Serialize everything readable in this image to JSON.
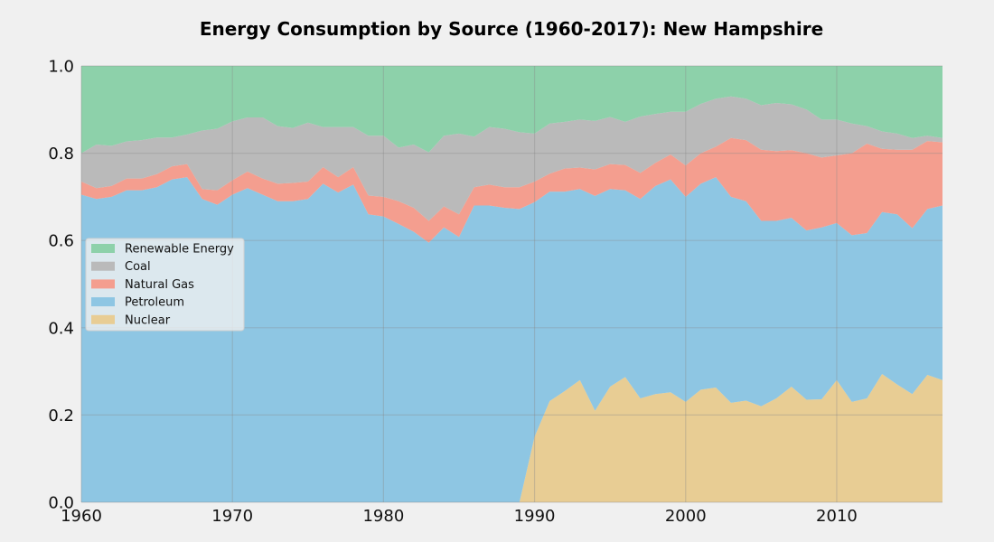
{
  "chart_data": {
    "type": "area",
    "stacked": true,
    "normalized": true,
    "title": "Energy Consumption by Source (1960-2017): New Hampshire",
    "xlabel": "",
    "ylabel": "",
    "xlim": [
      1960,
      2017
    ],
    "ylim": [
      0,
      1.0
    ],
    "x_ticks": [
      1960,
      1970,
      1980,
      1990,
      2000,
      2010
    ],
    "y_ticks": [
      "0.0",
      "0.2",
      "0.4",
      "0.6",
      "0.8",
      "1.0"
    ],
    "grid": true,
    "legend_position": "center-left",
    "stack_order_bottom_to_top": [
      "Nuclear",
      "Petroleum",
      "Natural Gas",
      "Coal",
      "Renewable Energy"
    ],
    "legend_order": [
      "Renewable Energy",
      "Coal",
      "Natural Gas",
      "Petroleum",
      "Nuclear"
    ],
    "colors": {
      "Nuclear": "#e8cd94",
      "Petroleum": "#8ec6e3",
      "Natural Gas": "#f49e8f",
      "Coal": "#bababa",
      "Renewable Energy": "#8dd1aa",
      "background": "#f0f0f0",
      "grid": "#c4c4c4"
    },
    "years": [
      1960,
      1961,
      1962,
      1963,
      1964,
      1965,
      1966,
      1967,
      1968,
      1969,
      1970,
      1971,
      1972,
      1973,
      1974,
      1975,
      1976,
      1977,
      1978,
      1979,
      1980,
      1981,
      1982,
      1983,
      1984,
      1985,
      1986,
      1987,
      1988,
      1989,
      1990,
      1991,
      1992,
      1993,
      1994,
      1995,
      1996,
      1997,
      1998,
      1999,
      2000,
      2001,
      2002,
      2003,
      2004,
      2005,
      2006,
      2007,
      2008,
      2009,
      2010,
      2011,
      2012,
      2013,
      2014,
      2015,
      2016,
      2017
    ],
    "cumulative_tops": {
      "Nuclear": [
        0,
        0,
        0,
        0,
        0,
        0,
        0,
        0,
        0,
        0,
        0,
        0,
        0,
        0,
        0,
        0,
        0,
        0,
        0,
        0,
        0,
        0,
        0,
        0,
        0,
        0,
        0,
        0,
        0,
        0,
        0.15,
        0.232,
        0.255,
        0.28,
        0.21,
        0.265,
        0.287,
        0.238,
        0.248,
        0.252,
        0.23,
        0.258,
        0.263,
        0.228,
        0.233,
        0.22,
        0.238,
        0.265,
        0.235,
        0.236,
        0.28,
        0.23,
        0.238,
        0.294,
        0.27,
        0.248,
        0.292,
        0.28
      ],
      "Petroleum": [
        0.705,
        0.695,
        0.7,
        0.715,
        0.715,
        0.722,
        0.74,
        0.745,
        0.695,
        0.682,
        0.705,
        0.72,
        0.705,
        0.69,
        0.69,
        0.695,
        0.73,
        0.71,
        0.728,
        0.66,
        0.655,
        0.638,
        0.62,
        0.595,
        0.63,
        0.608,
        0.68,
        0.68,
        0.675,
        0.672,
        0.688,
        0.712,
        0.712,
        0.718,
        0.702,
        0.718,
        0.715,
        0.695,
        0.725,
        0.74,
        0.7,
        0.73,
        0.745,
        0.7,
        0.69,
        0.645,
        0.645,
        0.652,
        0.623,
        0.63,
        0.64,
        0.612,
        0.617,
        0.665,
        0.66,
        0.628,
        0.672,
        0.68
      ],
      "Natural Gas": [
        0.735,
        0.72,
        0.725,
        0.742,
        0.742,
        0.752,
        0.77,
        0.775,
        0.718,
        0.715,
        0.738,
        0.758,
        0.742,
        0.73,
        0.732,
        0.735,
        0.768,
        0.745,
        0.768,
        0.703,
        0.7,
        0.69,
        0.675,
        0.645,
        0.678,
        0.66,
        0.722,
        0.728,
        0.722,
        0.722,
        0.735,
        0.753,
        0.765,
        0.767,
        0.763,
        0.775,
        0.773,
        0.755,
        0.778,
        0.797,
        0.772,
        0.8,
        0.815,
        0.835,
        0.83,
        0.808,
        0.805,
        0.807,
        0.8,
        0.79,
        0.795,
        0.8,
        0.822,
        0.81,
        0.808,
        0.808,
        0.828,
        0.825
      ],
      "Coal": [
        0.8,
        0.82,
        0.817,
        0.827,
        0.83,
        0.836,
        0.836,
        0.843,
        0.852,
        0.856,
        0.873,
        0.882,
        0.882,
        0.862,
        0.858,
        0.87,
        0.86,
        0.86,
        0.86,
        0.84,
        0.84,
        0.813,
        0.82,
        0.802,
        0.84,
        0.845,
        0.838,
        0.86,
        0.856,
        0.848,
        0.845,
        0.868,
        0.872,
        0.877,
        0.874,
        0.883,
        0.872,
        0.884,
        0.89,
        0.895,
        0.895,
        0.913,
        0.925,
        0.93,
        0.925,
        0.91,
        0.915,
        0.912,
        0.9,
        0.877,
        0.877,
        0.868,
        0.862,
        0.85,
        0.845,
        0.835,
        0.84,
        0.835
      ],
      "Renewable Energy": [
        1,
        1,
        1,
        1,
        1,
        1,
        1,
        1,
        1,
        1,
        1,
        1,
        1,
        1,
        1,
        1,
        1,
        1,
        1,
        1,
        1,
        1,
        1,
        1,
        1,
        1,
        1,
        1,
        1,
        1,
        1,
        1,
        1,
        1,
        1,
        1,
        1,
        1,
        1,
        1,
        1,
        1,
        1,
        1,
        1,
        1,
        1,
        1,
        1,
        1,
        1,
        1,
        1,
        1,
        1,
        1,
        1,
        1
      ]
    }
  }
}
